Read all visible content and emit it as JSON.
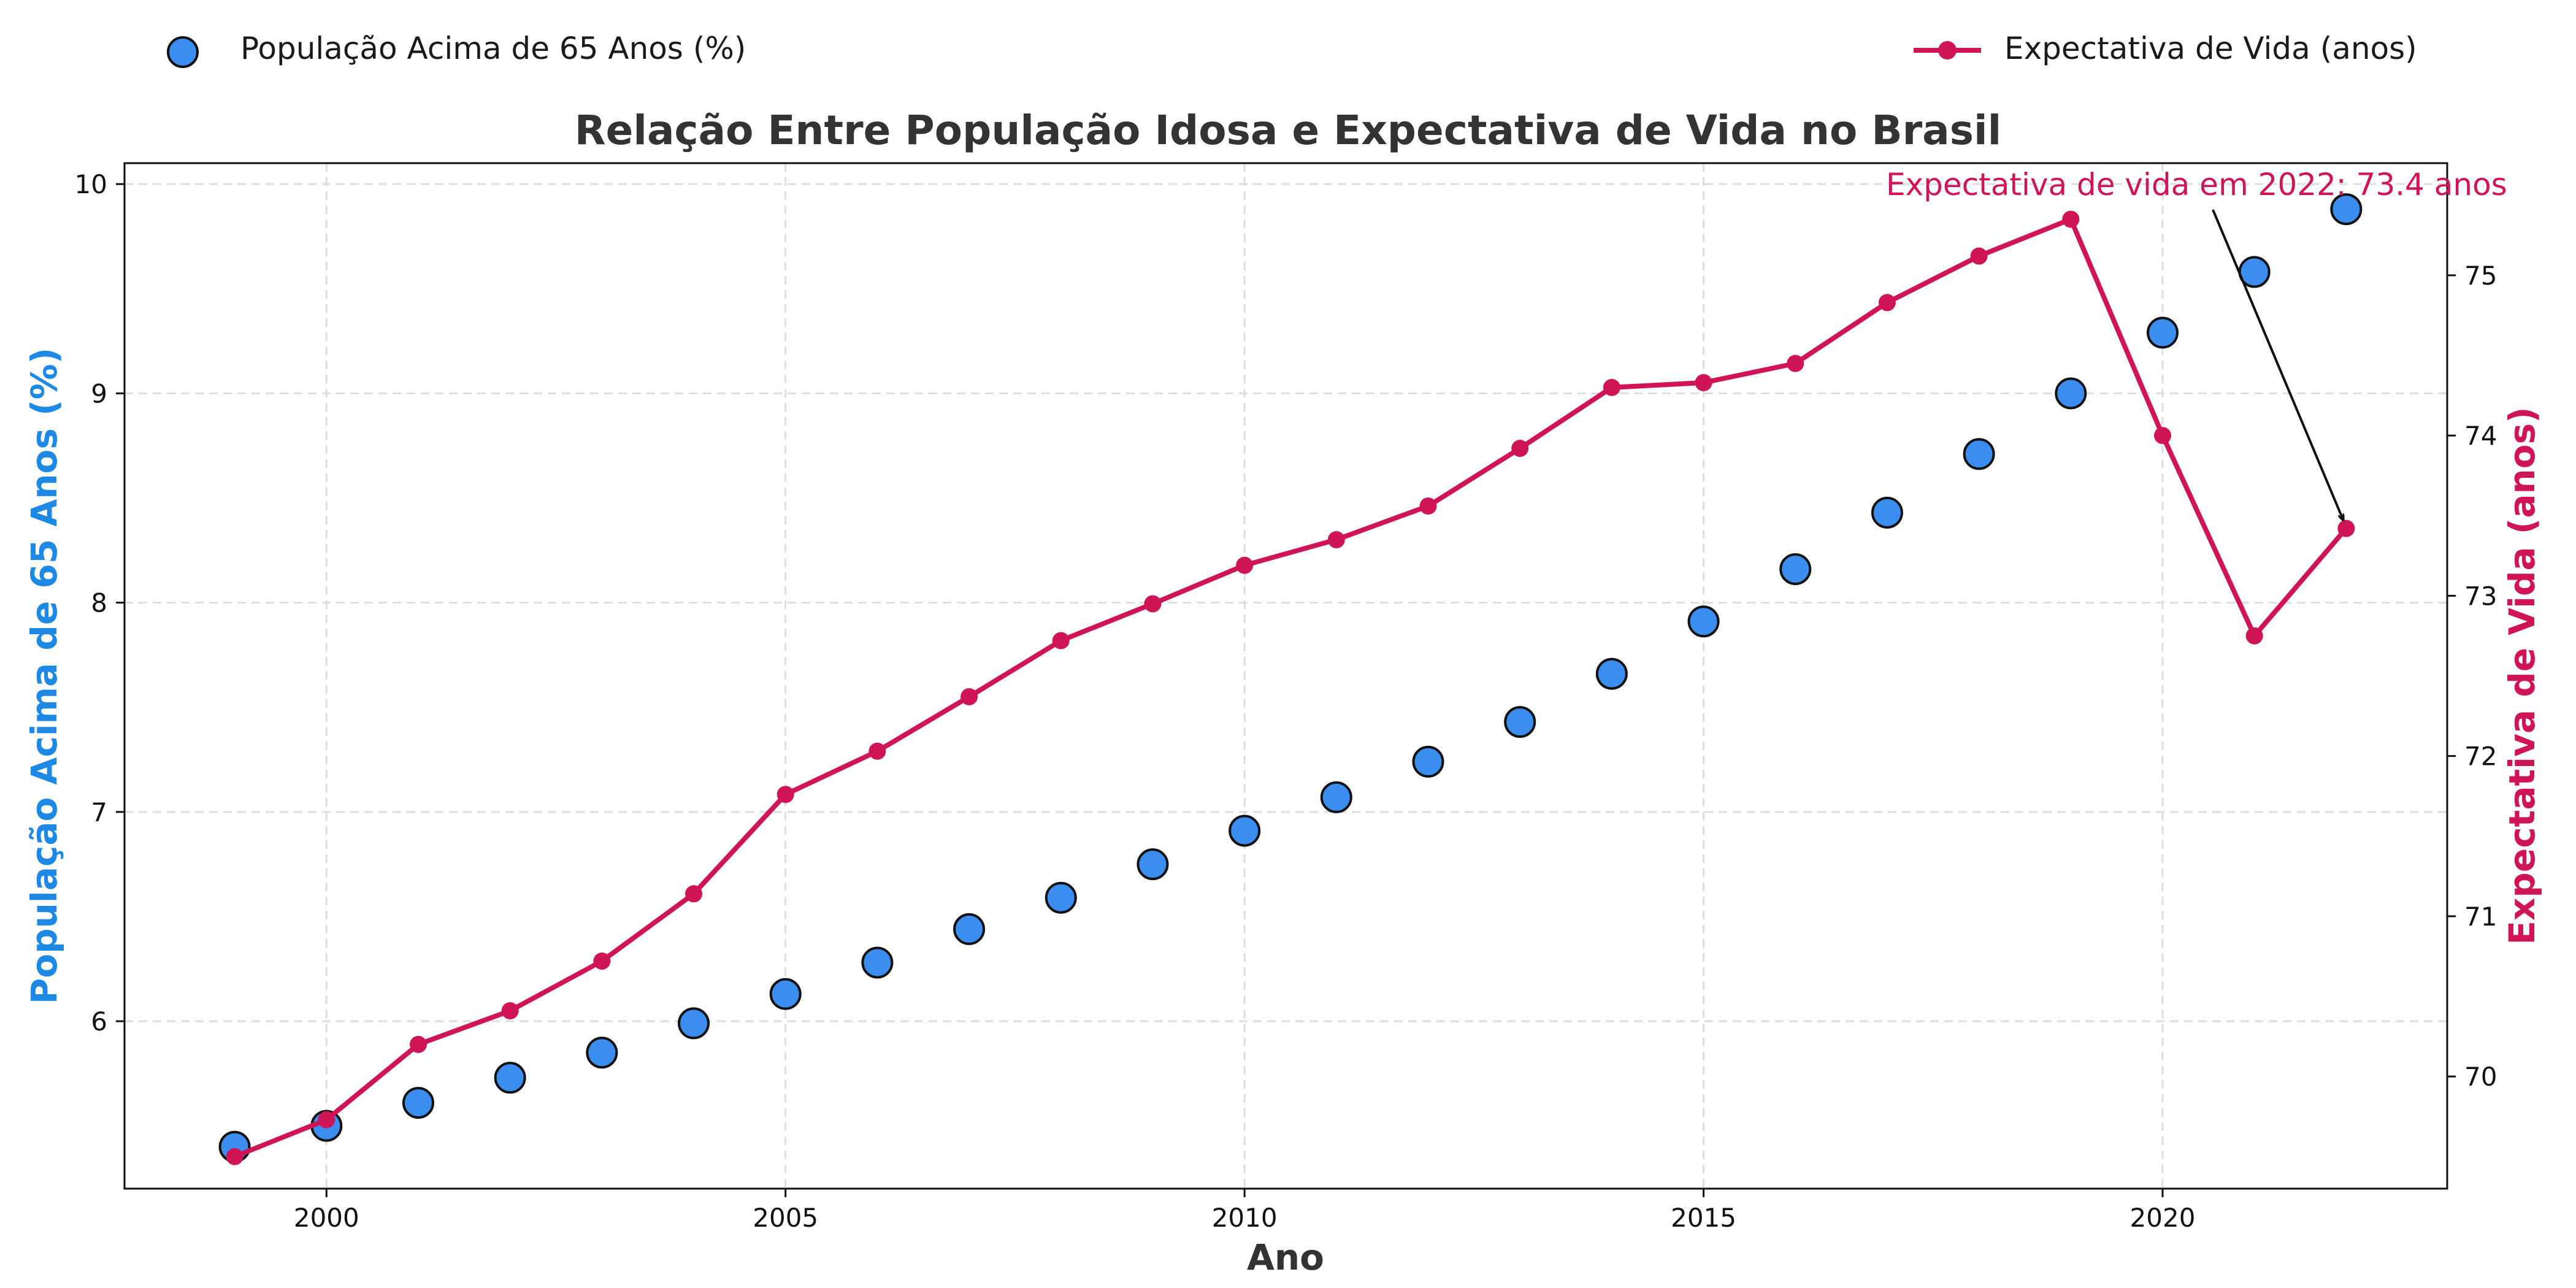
{
  "chart_data": {
    "type": "scatter",
    "title": "Relação Entre População Idosa e Expectativa de Vida no Brasil",
    "xlabel": "Ano",
    "ylabel_left": "População Acima de 65 Anos (%)",
    "ylabel_right": "Expectativa de Vida (anos)",
    "xlim": [
      1997.8,
      2023.1
    ],
    "ylim_left": [
      5.2,
      10.1
    ],
    "ylim_right": [
      69.3,
      75.7
    ],
    "x_ticks": [
      2000,
      2005,
      2010,
      2015,
      2020
    ],
    "y_left_ticks": [
      6,
      7,
      8,
      9,
      10
    ],
    "y_right_ticks": [
      70,
      71,
      72,
      73,
      74,
      75
    ],
    "grid": true,
    "legend": [
      {
        "label": "População Acima de 65 Anos (%)",
        "marker": "circle",
        "color": "#3b8ef0",
        "position": "top-left"
      },
      {
        "label": "Expectativa de Vida (anos)",
        "marker": "line-dot",
        "color": "#d01458",
        "position": "top-right"
      }
    ],
    "x": [
      1999,
      2000,
      2001,
      2002,
      2003,
      2004,
      2005,
      2006,
      2007,
      2008,
      2009,
      2010,
      2011,
      2012,
      2013,
      2014,
      2015,
      2016,
      2017,
      2018,
      2019,
      2020,
      2021,
      2022
    ],
    "series": [
      {
        "name": "População Acima de 65 Anos (%)",
        "type": "scatter",
        "axis": "left",
        "color": "#3b8ef0",
        "values": [
          5.4,
          5.5,
          5.61,
          5.73,
          5.85,
          5.99,
          6.13,
          6.28,
          6.44,
          6.59,
          6.75,
          6.91,
          7.07,
          7.24,
          7.43,
          7.66,
          7.91,
          8.16,
          8.43,
          8.71,
          9.0,
          9.29,
          9.58,
          9.88
        ]
      },
      {
        "name": "Expectativa de Vida (anos)",
        "type": "line",
        "axis": "right",
        "color": "#d01458",
        "values": [
          69.5,
          69.73,
          70.2,
          70.41,
          70.72,
          71.14,
          71.76,
          72.03,
          72.37,
          72.72,
          72.95,
          73.19,
          73.35,
          73.56,
          73.92,
          74.3,
          74.33,
          74.45,
          74.83,
          75.12,
          75.35,
          74.0,
          72.75,
          73.42
        ]
      }
    ],
    "annotation": {
      "text": "Expectativa de vida em 2022: 73.4 anos",
      "x": 2022,
      "y": 73.42,
      "color": "#d01458"
    }
  }
}
